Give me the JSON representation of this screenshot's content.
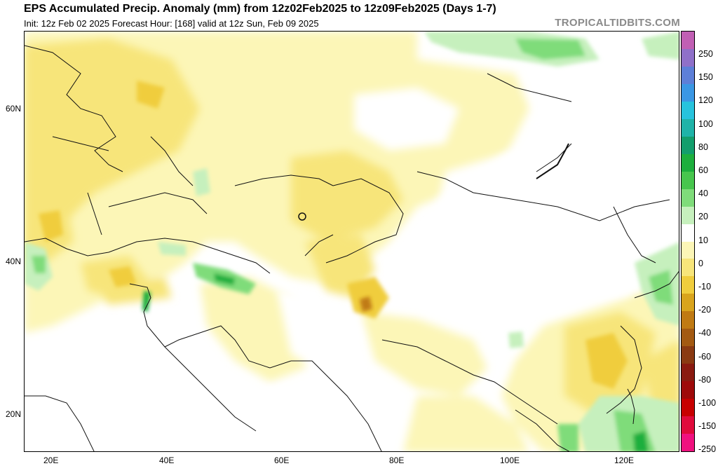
{
  "header": {
    "title": "EPS Accumulated Precip. Anomaly (mm) from 12z02Feb2025 to 12z09Feb2025 (Days 1-7)",
    "subtitle": "Init: 12z Feb 02 2025   Forecast Hour: [168]   valid at 12z Sun, Feb 09 2025",
    "brand": "TROPICALTIDBITS.COM"
  },
  "axes": {
    "lat_labels": [
      "60N",
      "40N",
      "20N"
    ],
    "lon_labels": [
      "20E",
      "40E",
      "60E",
      "80E",
      "100E",
      "120E"
    ]
  },
  "colorbar": {
    "labels": [
      "250",
      "150",
      "120",
      "100",
      "80",
      "60",
      "40",
      "20",
      "10",
      "0",
      "-10",
      "-20",
      "-40",
      "-60",
      "-80",
      "-100",
      "-150",
      "-250"
    ],
    "colors": [
      "#c15fb4",
      "#8f70c9",
      "#5d7fd8",
      "#3a97e4",
      "#27c3dd",
      "#1fb3a8",
      "#139e6c",
      "#1daf3d",
      "#47c64d",
      "#7fdc7a",
      "#c6f0bd",
      "#ffffff",
      "#fcf6b7",
      "#f7e57a",
      "#f0cd3d",
      "#d9a41d",
      "#c07a13",
      "#a35a12",
      "#8a3a12",
      "#8a1a10",
      "#9e0a0a",
      "#c70000",
      "#e00b3c",
      "#f0117f"
    ]
  }
}
